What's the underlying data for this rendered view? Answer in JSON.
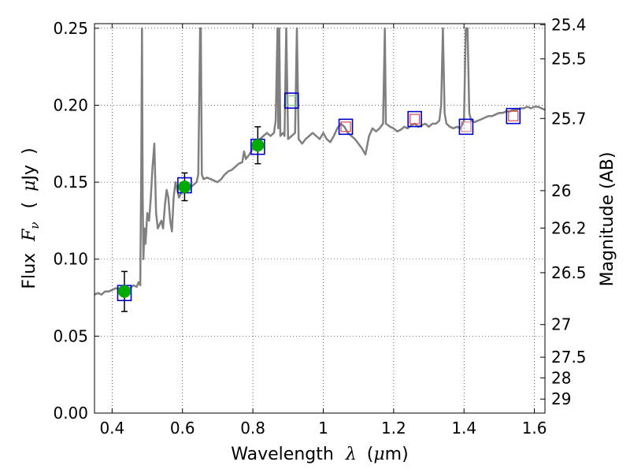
{
  "chart_data": {
    "type": "scatter",
    "xlabel": {
      "prefix": "Wavelength",
      "symbol": "λ",
      "unit_open": "(",
      "unit_mu": "μ",
      "unit_rest": "m)"
    },
    "ylabel": {
      "prefix": "Flux",
      "symbol": "F",
      "subscript": "ν",
      "unit_open": "(",
      "unit_mu": "μ",
      "unit_rest": "Jy",
      "unit_close": ")"
    },
    "y2label": "Magnitude (AB)",
    "xlim": [
      0.35,
      1.63
    ],
    "ylim": [
      0.0,
      0.253
    ],
    "grid": true,
    "x_ticks": [
      {
        "value": 0.4,
        "label": "0.4"
      },
      {
        "value": 0.6,
        "label": "0.6"
      },
      {
        "value": 0.8,
        "label": "0.8"
      },
      {
        "value": 1.0,
        "label": "1"
      },
      {
        "value": 1.2,
        "label": "1.2"
      },
      {
        "value": 1.4,
        "label": "1.4"
      },
      {
        "value": 1.6,
        "label": "1.6"
      }
    ],
    "y_ticks": [
      {
        "value": 0.0,
        "label": "0.00"
      },
      {
        "value": 0.05,
        "label": "0.05"
      },
      {
        "value": 0.1,
        "label": "0.10"
      },
      {
        "value": 0.15,
        "label": "0.15"
      },
      {
        "value": 0.2,
        "label": "0.20"
      },
      {
        "value": 0.25,
        "label": "0.25"
      }
    ],
    "y2_ticks": [
      {
        "flux": 0.2523,
        "label": "25.4"
      },
      {
        "flux": 0.2301,
        "label": "25.5"
      },
      {
        "flux": 0.1914,
        "label": "25.7"
      },
      {
        "flux": 0.1445,
        "label": "26"
      },
      {
        "flux": 0.1202,
        "label": "26.2"
      },
      {
        "flux": 0.0912,
        "label": "26.5"
      },
      {
        "flux": 0.0575,
        "label": "27"
      },
      {
        "flux": 0.0363,
        "label": "27.5"
      },
      {
        "flux": 0.0229,
        "label": "28"
      },
      {
        "flux": 0.0091,
        "label": "29"
      }
    ],
    "spectrum": {
      "color": "#808080",
      "points": [
        [
          0.35,
          0.077
        ],
        [
          0.36,
          0.078
        ],
        [
          0.37,
          0.077
        ],
        [
          0.38,
          0.079
        ],
        [
          0.39,
          0.079
        ],
        [
          0.4,
          0.08
        ],
        [
          0.41,
          0.081
        ],
        [
          0.42,
          0.081
        ],
        [
          0.43,
          0.082
        ],
        [
          0.44,
          0.082
        ],
        [
          0.45,
          0.081
        ],
        [
          0.46,
          0.083
        ],
        [
          0.47,
          0.082
        ],
        [
          0.475,
          0.085
        ],
        [
          0.48,
          0.083
        ],
        [
          0.483,
          0.16
        ],
        [
          0.485,
          0.25
        ],
        [
          0.487,
          0.14
        ],
        [
          0.489,
          0.1
        ],
        [
          0.492,
          0.12
        ],
        [
          0.495,
          0.11
        ],
        [
          0.5,
          0.13
        ],
        [
          0.505,
          0.125
        ],
        [
          0.51,
          0.14
        ],
        [
          0.515,
          0.16
        ],
        [
          0.52,
          0.175
        ],
        [
          0.525,
          0.13
        ],
        [
          0.53,
          0.12
        ],
        [
          0.54,
          0.125
        ],
        [
          0.545,
          0.12
        ],
        [
          0.55,
          0.135
        ],
        [
          0.555,
          0.145
        ],
        [
          0.56,
          0.14
        ],
        [
          0.565,
          0.125
        ],
        [
          0.57,
          0.118
        ],
        [
          0.575,
          0.14
        ],
        [
          0.58,
          0.15
        ],
        [
          0.59,
          0.14
        ],
        [
          0.6,
          0.145
        ],
        [
          0.61,
          0.148
        ],
        [
          0.62,
          0.146
        ],
        [
          0.63,
          0.148
        ],
        [
          0.64,
          0.15
        ],
        [
          0.645,
          0.155
        ],
        [
          0.65,
          0.25
        ],
        [
          0.652,
          0.25
        ],
        [
          0.655,
          0.155
        ],
        [
          0.66,
          0.152
        ],
        [
          0.67,
          0.153
        ],
        [
          0.68,
          0.152
        ],
        [
          0.69,
          0.151
        ],
        [
          0.7,
          0.15
        ],
        [
          0.71,
          0.152
        ],
        [
          0.72,
          0.155
        ],
        [
          0.73,
          0.157
        ],
        [
          0.74,
          0.158
        ],
        [
          0.75,
          0.16
        ],
        [
          0.76,
          0.162
        ],
        [
          0.77,
          0.163
        ],
        [
          0.775,
          0.17
        ],
        [
          0.78,
          0.165
        ],
        [
          0.79,
          0.168
        ],
        [
          0.8,
          0.172
        ],
        [
          0.81,
          0.175
        ],
        [
          0.82,
          0.178
        ],
        [
          0.83,
          0.18
        ],
        [
          0.84,
          0.182
        ],
        [
          0.85,
          0.18
        ],
        [
          0.86,
          0.182
        ],
        [
          0.865,
          0.19
        ],
        [
          0.87,
          0.25
        ],
        [
          0.872,
          0.185
        ],
        [
          0.875,
          0.25
        ],
        [
          0.878,
          0.18
        ],
        [
          0.885,
          0.182
        ],
        [
          0.89,
          0.18
        ],
        [
          0.895,
          0.25
        ],
        [
          0.9,
          0.178
        ],
        [
          0.91,
          0.18
        ],
        [
          0.92,
          0.182
        ],
        [
          0.925,
          0.25
        ],
        [
          0.93,
          0.178
        ],
        [
          0.94,
          0.175
        ],
        [
          0.95,
          0.178
        ],
        [
          0.96,
          0.18
        ],
        [
          0.97,
          0.182
        ],
        [
          0.98,
          0.18
        ],
        [
          0.99,
          0.178
        ],
        [
          1.0,
          0.182
        ],
        [
          1.01,
          0.178
        ],
        [
          1.02,
          0.176
        ],
        [
          1.03,
          0.18
        ],
        [
          1.04,
          0.185
        ],
        [
          1.05,
          0.188
        ],
        [
          1.06,
          0.186
        ],
        [
          1.07,
          0.182
        ],
        [
          1.08,
          0.18
        ],
        [
          1.09,
          0.178
        ],
        [
          1.1,
          0.175
        ],
        [
          1.11,
          0.172
        ],
        [
          1.12,
          0.168
        ],
        [
          1.13,
          0.18
        ],
        [
          1.14,
          0.185
        ],
        [
          1.15,
          0.183
        ],
        [
          1.16,
          0.185
        ],
        [
          1.17,
          0.188
        ],
        [
          1.175,
          0.25
        ],
        [
          1.178,
          0.188
        ],
        [
          1.19,
          0.186
        ],
        [
          1.2,
          0.185
        ],
        [
          1.21,
          0.183
        ],
        [
          1.22,
          0.184
        ],
        [
          1.23,
          0.186
        ],
        [
          1.24,
          0.185
        ],
        [
          1.25,
          0.187
        ],
        [
          1.26,
          0.188
        ],
        [
          1.27,
          0.186
        ],
        [
          1.28,
          0.187
        ],
        [
          1.29,
          0.188
        ],
        [
          1.3,
          0.186
        ],
        [
          1.31,
          0.188
        ],
        [
          1.32,
          0.188
        ],
        [
          1.33,
          0.19
        ],
        [
          1.335,
          0.2
        ],
        [
          1.34,
          0.25
        ],
        [
          1.345,
          0.195
        ],
        [
          1.35,
          0.188
        ],
        [
          1.36,
          0.186
        ],
        [
          1.37,
          0.185
        ],
        [
          1.38,
          0.186
        ],
        [
          1.39,
          0.185
        ],
        [
          1.4,
          0.19
        ],
        [
          1.405,
          0.25
        ],
        [
          1.41,
          0.25
        ],
        [
          1.415,
          0.195
        ],
        [
          1.42,
          0.19
        ],
        [
          1.43,
          0.189
        ],
        [
          1.44,
          0.19
        ],
        [
          1.45,
          0.191
        ],
        [
          1.46,
          0.192
        ],
        [
          1.47,
          0.193
        ],
        [
          1.48,
          0.193
        ],
        [
          1.49,
          0.194
        ],
        [
          1.5,
          0.195
        ],
        [
          1.51,
          0.195
        ],
        [
          1.52,
          0.196
        ],
        [
          1.53,
          0.196
        ],
        [
          1.54,
          0.197
        ],
        [
          1.55,
          0.197
        ],
        [
          1.56,
          0.198
        ],
        [
          1.57,
          0.198
        ],
        [
          1.58,
          0.199
        ],
        [
          1.59,
          0.198
        ],
        [
          1.6,
          0.199
        ],
        [
          1.61,
          0.199
        ],
        [
          1.62,
          0.198
        ],
        [
          1.63,
          0.197
        ]
      ]
    },
    "photometry": [
      {
        "x": 0.435,
        "y": 0.079,
        "err": 0.013,
        "marker": "filled-circle",
        "color": "#00aa00"
      },
      {
        "x": 0.606,
        "y": 0.147,
        "err": 0.009,
        "marker": "filled-circle",
        "color": "#00aa00"
      },
      {
        "x": 0.814,
        "y": 0.174,
        "err": 0.012,
        "marker": "filled-circle",
        "color": "#00aa00"
      }
    ],
    "model_points": [
      {
        "x": 0.435,
        "y": 0.078,
        "color": "#0000cc"
      },
      {
        "x": 0.606,
        "y": 0.148,
        "color": "#0000cc"
      },
      {
        "x": 0.814,
        "y": 0.173,
        "color": "#0000cc"
      },
      {
        "x": 0.91,
        "y": 0.203,
        "color": "#0000cc"
      },
      {
        "x": 1.064,
        "y": 0.186,
        "color": "#0000cc"
      },
      {
        "x": 1.26,
        "y": 0.191,
        "color": "#0000cc"
      },
      {
        "x": 1.406,
        "y": 0.186,
        "color": "#0000cc"
      },
      {
        "x": 1.54,
        "y": 0.193,
        "color": "#0000cc"
      }
    ],
    "inner_squares": [
      {
        "x": 0.91,
        "y": 0.203,
        "color": "#88cc88"
      },
      {
        "x": 1.064,
        "y": 0.186,
        "color": "#dd4444"
      },
      {
        "x": 1.26,
        "y": 0.191,
        "color": "#dd4444"
      },
      {
        "x": 1.406,
        "y": 0.186,
        "color": "#dd8888"
      },
      {
        "x": 1.54,
        "y": 0.193,
        "color": "#dd4444"
      }
    ]
  }
}
